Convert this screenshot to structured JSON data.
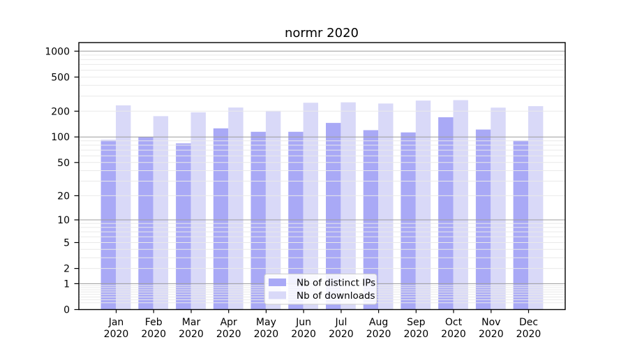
{
  "title": "normr 2020",
  "chart_data": {
    "type": "bar",
    "title": "normr 2020",
    "categories": [
      "Jan",
      "Feb",
      "Mar",
      "Apr",
      "May",
      "Jun",
      "Jul",
      "Aug",
      "Sep",
      "Oct",
      "Nov",
      "Dec"
    ],
    "category_year": "2020",
    "series": [
      {
        "name": "Nb of distinct IPs",
        "color": "#a9a9f6",
        "values": [
          92,
          100,
          84,
          126,
          115,
          115,
          146,
          120,
          113,
          170,
          122,
          91
        ]
      },
      {
        "name": "Nb of downloads",
        "color": "#d9d9f8",
        "values": [
          234,
          175,
          194,
          221,
          202,
          251,
          254,
          246,
          266,
          269,
          220,
          229
        ]
      }
    ],
    "xlabel": "",
    "ylabel": "",
    "yscale": "log(1+x)",
    "ylim": [
      0,
      1258
    ],
    "ytick_values": [
      1000,
      500,
      200,
      100,
      50,
      20,
      10,
      5,
      2,
      1,
      0
    ],
    "ytick_labels": [
      "1000",
      "500",
      "200",
      "100",
      "50",
      "20",
      "10",
      "5",
      "2",
      "1",
      "0"
    ],
    "grid": "both",
    "grid_minor_color": "#e9e9e9",
    "grid_major_color": "#9c9c9c",
    "legend_position": "lower-center"
  }
}
